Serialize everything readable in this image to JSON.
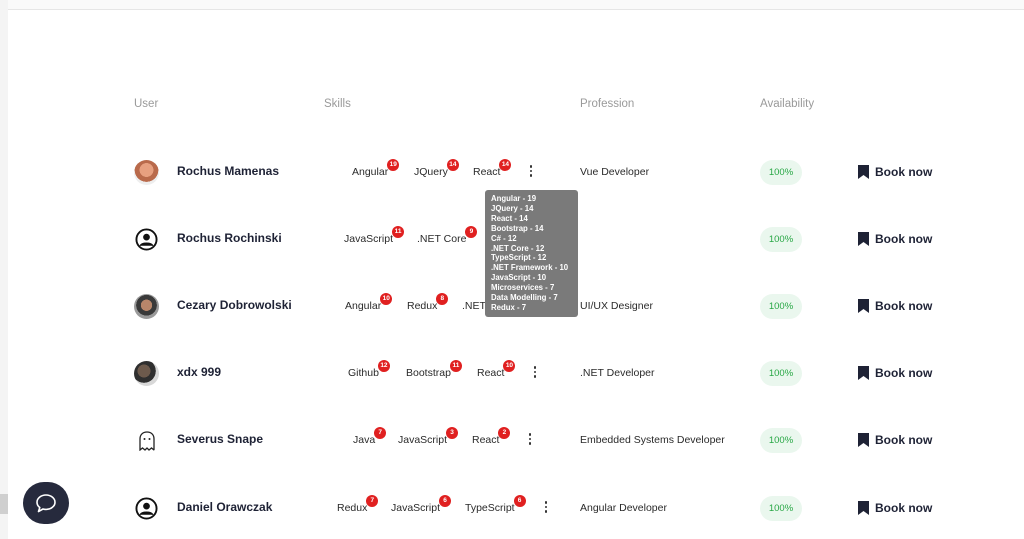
{
  "table": {
    "headers": {
      "user": "User",
      "skills": "Skills",
      "profession": "Profession",
      "availability": "Availability"
    },
    "rows": [
      {
        "name": "Rochus Mamenas",
        "avatar": "photo-avatar",
        "skills": [
          {
            "label": "Angular",
            "count": "19"
          },
          {
            "label": "JQuery",
            "count": "14"
          },
          {
            "label": "React",
            "count": "14"
          }
        ],
        "profession": "Vue Developer",
        "availability": "100%",
        "book": "Book now"
      },
      {
        "name": "Rochus Rochinski",
        "avatar": "default-user-icon",
        "skills": [
          {
            "label": "JavaScript",
            "count": "11"
          },
          {
            "label": ".NET Core",
            "count": "9"
          }
        ],
        "profession": "",
        "availability": "100%",
        "book": "Book now"
      },
      {
        "name": "Cezary Dobrowolski",
        "avatar": "photo-avatar",
        "skills": [
          {
            "label": "Angular",
            "count": "10"
          },
          {
            "label": "Redux",
            "count": "8"
          },
          {
            "label": ".NET",
            "count": ""
          }
        ],
        "profession": "UI/UX Designer",
        "availability": "100%",
        "book": "Book now"
      },
      {
        "name": "xdx 999",
        "avatar": "photo-avatar",
        "skills": [
          {
            "label": "Github",
            "count": "12"
          },
          {
            "label": "Bootstrap",
            "count": "11"
          },
          {
            "label": "React",
            "count": "10"
          }
        ],
        "profession": ".NET Developer",
        "availability": "100%",
        "book": "Book now"
      },
      {
        "name": "Severus Snape",
        "avatar": "ghost-icon",
        "skills": [
          {
            "label": "Java",
            "count": "7"
          },
          {
            "label": "JavaScript",
            "count": "3"
          },
          {
            "label": "React",
            "count": "2"
          }
        ],
        "profession": "Embedded Systems Developer",
        "availability": "100%",
        "book": "Book now"
      },
      {
        "name": "Daniel Orawczak",
        "avatar": "default-user-icon",
        "skills": [
          {
            "label": "Redux",
            "count": "7"
          },
          {
            "label": "JavaScript",
            "count": "6"
          },
          {
            "label": "TypeScript",
            "count": "6"
          }
        ],
        "profession": "Angular Developer",
        "availability": "100%",
        "book": "Book now"
      }
    ]
  },
  "tooltip": {
    "lines": [
      "Angular - 19",
      "JQuery - 14",
      "React - 14",
      "Bootstrap - 14",
      "C# - 12",
      ".NET Core - 12",
      "TypeScript - 12",
      ".NET Framework - 10",
      "JavaScript - 10",
      "Microservices - 7",
      "Data Modelling - 7",
      "Redux - 7"
    ]
  },
  "colors": {
    "badge": "#e02020",
    "availability_bg": "#eaf7ee",
    "availability_text": "#28a745",
    "chat_button": "#262a3d",
    "tooltip_bg": "#7a7a7a"
  },
  "icons": {
    "more": "vertical-dots-icon",
    "book": "bookmark-icon",
    "chat": "chat-bubble-icon"
  }
}
